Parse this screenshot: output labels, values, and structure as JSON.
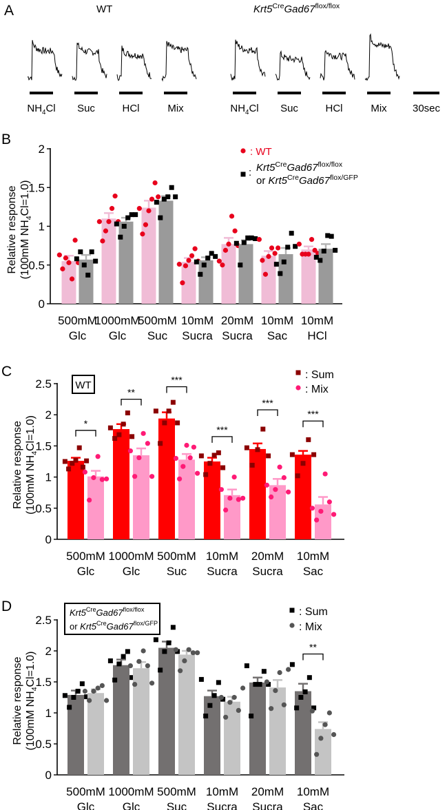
{
  "panel_letters": [
    "A",
    "B",
    "C",
    "D"
  ],
  "genotype": {
    "gene1": "Krt5",
    "sup1": "Cre",
    "gene2": "Gad67",
    "sup_floxflox": "flox/flox",
    "sup_floxgfp": "flox/GFP",
    "or": "or"
  },
  "panel_a": {
    "wt_label": "WT",
    "stimuli": [
      {
        "pre": "NH",
        "sub": "4",
        "post": "Cl"
      },
      {
        "pre": "Suc"
      },
      {
        "pre": "HCl"
      },
      {
        "pre": "Mix"
      }
    ],
    "scale_label": "30sec"
  },
  "colors": {
    "wt_bar": "#f0bcd6",
    "wt_pt": "#e8001c",
    "ko_bar": "#9a9a9a",
    "ko_pt": "#000000",
    "sum_bar": "#ff0000",
    "sum_pt": "#8b0000",
    "mix_bar": "#ff99c8",
    "mix_pt": "#ff1a75",
    "d_sum_bar": "#737070",
    "d_sum_pt": "#000000",
    "d_mix_bar": "#c4c4c4",
    "d_mix_pt": "#555555"
  },
  "chart_data": [
    {
      "panel": "B",
      "type": "bar",
      "ylabel": "Relative response",
      "ylabel2": {
        "pre": "(100mM NH",
        "sub": "4",
        "post": "Cl=1.0)"
      },
      "ylim": [
        0,
        2
      ],
      "yticks": [
        "0",
        "0.5",
        "1",
        "1.5",
        "2"
      ],
      "categories": [
        [
          "500mM",
          "Glc"
        ],
        [
          "1000mM",
          "Glc"
        ],
        [
          "500mM",
          "Suc"
        ],
        [
          "10mM",
          "Sucra"
        ],
        [
          "20mM",
          "Sucra"
        ],
        [
          "10mM",
          "Sac"
        ],
        [
          "10mM",
          "HCl"
        ]
      ],
      "legend": {
        "wt": ": WT",
        "ko_colon": ":"
      },
      "series": [
        {
          "name": "WT",
          "marker": "circle",
          "means": [
            0.55,
            1.1,
            1.24,
            0.54,
            0.77,
            0.62,
            0.7
          ],
          "sem": [
            0.07,
            0.07,
            0.09,
            0.05,
            0.08,
            0.06,
            0.04
          ],
          "points": [
            [
              0.63,
              0.45,
              0.59,
              0.53,
              0.32,
              0.82,
              0.53
            ],
            [
              1.06,
              0.81,
              0.94,
              1.06,
              1.23,
              1.39,
              1.06
            ],
            [
              1.23,
              0.9,
              1.02,
              1.2,
              1.35,
              1.56,
              1.38
            ],
            [
              0.51,
              0.27,
              0.49,
              0.56,
              0.62,
              0.71,
              0.55
            ],
            [
              0.55,
              0.5,
              0.69,
              0.77,
              1.13,
              0.94,
              0.75
            ],
            [
              0.83,
              0.56,
              0.38,
              0.61,
              0.72,
              0.65,
              0.72
            ],
            [
              0.77,
              0.64,
              0.64,
              0.64,
              0.83,
              0.69,
              0.65
            ]
          ]
        },
        {
          "name": "Krt5CreGad67flox/flox or Krt5CreGad67flox/GFP",
          "marker": "square",
          "means": [
            0.57,
            1.06,
            1.33,
            0.56,
            0.77,
            0.64,
            0.71
          ],
          "sem": [
            0.06,
            0.05,
            0.06,
            0.04,
            0.05,
            0.08,
            0.06
          ],
          "points": [
            [
              0.58,
              0.67,
              0.5,
              0.37,
              0.67,
              0.55
            ],
            [
              1.03,
              0.86,
              1.0,
              1.11,
              1.15,
              1.15
            ],
            [
              1.31,
              1.11,
              1.35,
              1.38,
              1.5,
              1.38
            ],
            [
              0.54,
              0.38,
              0.5,
              0.59,
              0.65,
              0.61
            ],
            [
              0.78,
              0.5,
              0.79,
              0.85,
              0.85,
              0.84
            ],
            [
              0.51,
              0.39,
              0.54,
              0.73,
              0.91,
              0.74
            ],
            [
              0.6,
              0.56,
              0.68,
              0.88,
              0.87,
              0.69
            ]
          ]
        }
      ]
    },
    {
      "panel": "C",
      "type": "bar",
      "ylabel": "Relative response",
      "ylabel2": {
        "pre": "(100mM NH",
        "sub": "4",
        "post": "Cl=1.0)"
      },
      "ylim": [
        0,
        2.5
      ],
      "yticks": [
        "0",
        "0.5",
        "1",
        "1.5",
        "2",
        "2.5"
      ],
      "box_label": "WT",
      "categories": [
        [
          "500mM",
          "Glc"
        ],
        [
          "1000mM",
          "Glc"
        ],
        [
          "500mM",
          "Suc"
        ],
        [
          "10mM",
          "Sucra"
        ],
        [
          "20mM",
          "Sucra"
        ],
        [
          "10mM",
          "Sac"
        ]
      ],
      "legend": {
        "sum": ": Sum",
        "mix": ": Mix"
      },
      "significance": [
        {
          "label": "*",
          "y": 1.75
        },
        {
          "label": "**",
          "y": 2.25
        },
        {
          "label": "***",
          "y": 2.45
        },
        {
          "label": "***",
          "y": 1.65
        },
        {
          "label": "***",
          "y": 2.08
        },
        {
          "label": "***",
          "y": 1.9
        }
      ],
      "series": [
        {
          "name": "Sum",
          "marker": "square",
          "means": [
            1.26,
            1.77,
            1.94,
            1.25,
            1.45,
            1.36
          ],
          "sem": [
            0.05,
            0.08,
            0.1,
            0.06,
            0.09,
            0.06
          ],
          "points": [
            [
              1.25,
              1.13,
              1.22,
              1.27,
              1.47,
              1.16,
              1.26
            ],
            [
              1.79,
              1.62,
              1.68,
              1.85,
              2.03,
              1.65
            ],
            [
              2.06,
              1.54,
              1.87,
              2.06,
              2.2,
              1.87
            ],
            [
              1.34,
              1.04,
              1.22,
              1.35,
              1.39,
              1.15
            ],
            [
              1.47,
              1.19,
              1.44,
              1.77,
              1.34
            ],
            [
              1.36,
              1.02,
              1.22,
              1.6,
              1.36
            ]
          ]
        },
        {
          "name": "Mix",
          "marker": "circle",
          "means": [
            1.01,
            1.35,
            1.28,
            0.71,
            0.87,
            0.56
          ],
          "sem": [
            0.09,
            0.11,
            0.09,
            0.09,
            0.1,
            0.12
          ],
          "points": [
            [
              1.08,
              0.63,
              0.99,
              1.33,
              0.96,
              0.97
            ],
            [
              1.42,
              1.01,
              1.31,
              1.7,
              1.54,
              1.01
            ],
            [
              1.3,
              0.97,
              1.17,
              1.51,
              1.31,
              1.48,
              1.06
            ],
            [
              0.8,
              0.47,
              0.66,
              1.0,
              0.64,
              0.66
            ],
            [
              0.87,
              0.68,
              0.8,
              1.16,
              0.99,
              0.76
            ],
            [
              0.5,
              0.31,
              0.45,
              1.05,
              0.6,
              0.4
            ]
          ]
        }
      ]
    },
    {
      "panel": "D",
      "type": "bar",
      "ylabel": "Relative response",
      "ylabel2": {
        "pre": "(100mM NH",
        "sub": "4",
        "post": "Cl=1.0)"
      },
      "ylim": [
        0,
        2.5
      ],
      "yticks": [
        "0",
        "0.5",
        "1",
        "1.5",
        "2",
        "2.5"
      ],
      "categories": [
        [
          "500mM",
          "Glc"
        ],
        [
          "1000mM",
          "Glc"
        ],
        [
          "500mM",
          "Suc"
        ],
        [
          "10mM",
          "Sucra"
        ],
        [
          "20mM",
          "Sucra"
        ],
        [
          "10mM",
          "Sac"
        ]
      ],
      "legend": {
        "sum": ": Sum",
        "mix": ": Mix"
      },
      "significance": [
        null,
        null,
        null,
        null,
        null,
        {
          "label": "**",
          "y": 1.95
        }
      ],
      "series": [
        {
          "name": "Sum",
          "marker": "square",
          "means": [
            1.29,
            1.77,
            2.05,
            1.27,
            1.49,
            1.35
          ],
          "sem": [
            0.07,
            0.09,
            0.1,
            0.09,
            0.08,
            0.12
          ],
          "points": [
            [
              1.28,
              1.09,
              1.25,
              1.35,
              1.47,
              1.26
            ],
            [
              1.84,
              1.53,
              1.79,
              1.91,
              1.99,
              1.57
            ],
            [
              2.18,
              1.69,
              1.99,
              2.13,
              2.38,
              1.99
            ],
            [
              1.54,
              0.95,
              1.12,
              1.28,
              1.49,
              1.22
            ],
            [
              1.76,
              0.95,
              1.46,
              1.46,
              1.67,
              1.46
            ],
            [
              1.78,
              1.08,
              1.25,
              1.34,
              1.57,
              1.08
            ]
          ]
        },
        {
          "name": "Mix",
          "marker": "circle",
          "means": [
            1.32,
            1.72,
            1.94,
            1.18,
            1.41,
            0.74
          ],
          "sem": [
            0.06,
            0.1,
            0.06,
            0.08,
            0.12,
            0.11
          ],
          "points": [
            [
              1.35,
              1.2,
              1.35,
              1.4,
              1.44,
              1.2
            ],
            [
              1.76,
              1.46,
              1.83,
              2.0,
              1.76,
              1.48
            ],
            [
              2.02,
              1.68,
              1.84,
              2.02,
              1.97,
              1.97
            ],
            [
              1.25,
              0.93,
              1.17,
              1.25,
              1.04,
              1.4
            ],
            [
              1.5,
              1.07,
              1.36,
              1.65,
              1.13,
              1.7
            ],
            [
              1.03,
              0.33,
              0.59,
              0.81,
              1.0,
              0.65
            ]
          ]
        }
      ]
    }
  ]
}
